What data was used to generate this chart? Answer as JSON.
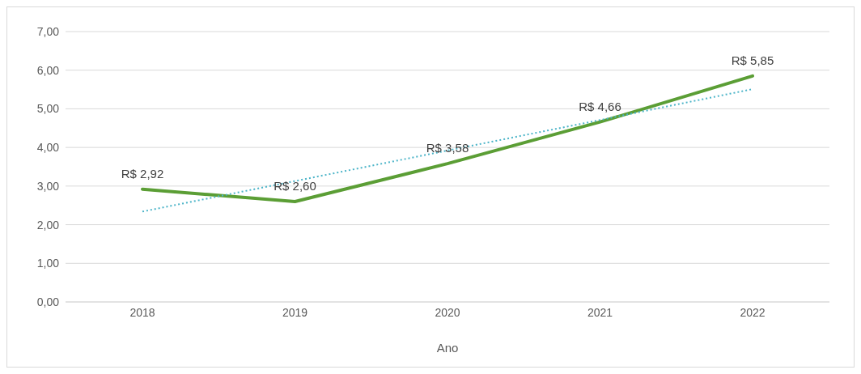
{
  "chart_data": {
    "type": "line",
    "xlabel": "Ano",
    "categories": [
      "2018",
      "2019",
      "2020",
      "2021",
      "2022"
    ],
    "series": [
      {
        "type": "line",
        "color": "#5b9e35",
        "line_style": "solid",
        "values": [
          2.92,
          2.6,
          3.58,
          4.66,
          5.85
        ],
        "value_labels": [
          "R$ 2,92",
          "R$ 2,60",
          "R$ 3,58",
          "R$ 4,66",
          "R$ 5,85"
        ]
      },
      {
        "type": "line",
        "color": "#4bb4c8",
        "line_style": "dotted",
        "values": [
          2.34,
          3.13,
          3.92,
          4.71,
          5.51
        ]
      }
    ],
    "ylim": [
      0,
      7
    ],
    "yticks": [
      {
        "value": 0,
        "label": "0,00"
      },
      {
        "value": 1,
        "label": "1,00"
      },
      {
        "value": 2,
        "label": "2,00"
      },
      {
        "value": 3,
        "label": "3,00"
      },
      {
        "value": 4,
        "label": "4,00"
      },
      {
        "value": 5,
        "label": "5,00"
      },
      {
        "value": 6,
        "label": "6,00"
      },
      {
        "value": 7,
        "label": "7,00"
      }
    ],
    "grid": "y",
    "marker": "none",
    "legend": false
  }
}
